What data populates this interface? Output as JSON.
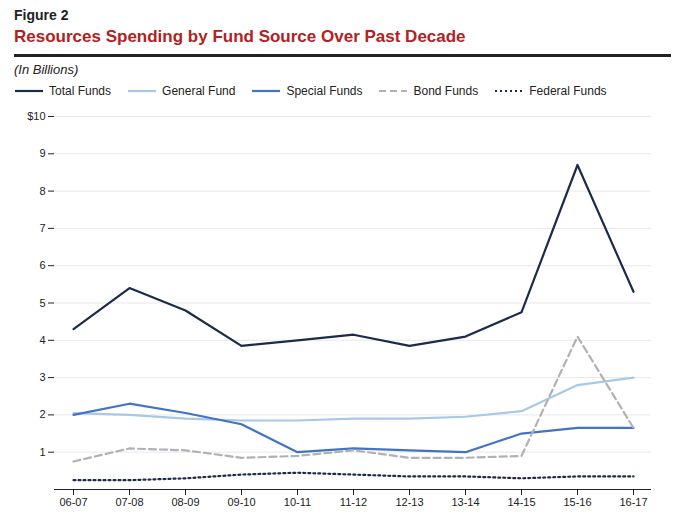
{
  "chart_data": {
    "type": "line",
    "figure_label": "Figure 2",
    "title": "Resources Spending by Fund Source Over Past Decade",
    "subtitle": "(In Billions)",
    "categories": [
      "06-07",
      "07-08",
      "08-09",
      "09-10",
      "10-11",
      "11-12",
      "12-13",
      "13-14",
      "14-15",
      "15-16",
      "16-17"
    ],
    "series": [
      {
        "name": "Total Funds",
        "color": "#1c2b4a",
        "line_style": "solid",
        "values": [
          4.3,
          5.4,
          4.8,
          3.85,
          4.0,
          4.15,
          3.85,
          4.1,
          4.75,
          8.7,
          5.3
        ]
      },
      {
        "name": "General Fund",
        "color": "#a8c8e8",
        "line_style": "solid",
        "values": [
          2.05,
          2.0,
          1.9,
          1.85,
          1.85,
          1.9,
          1.9,
          1.95,
          2.1,
          2.8,
          3.0
        ]
      },
      {
        "name": "Special Funds",
        "color": "#4472c4",
        "line_style": "solid",
        "values": [
          2.0,
          2.3,
          2.05,
          1.75,
          1.0,
          1.1,
          1.05,
          1.0,
          1.5,
          1.65,
          1.65
        ]
      },
      {
        "name": "Bond Funds",
        "color": "#b0b0b8",
        "line_style": "dashed",
        "values": [
          0.75,
          1.1,
          1.05,
          0.85,
          0.9,
          1.05,
          0.85,
          0.85,
          0.9,
          4.1,
          1.65
        ]
      },
      {
        "name": "Federal Funds",
        "color": "#1c2b4a",
        "line_style": "dotted",
        "values": [
          0.25,
          0.25,
          0.3,
          0.4,
          0.45,
          0.4,
          0.35,
          0.35,
          0.3,
          0.35,
          0.35
        ]
      }
    ],
    "ylim": [
      0,
      10
    ],
    "yticks": [
      1,
      2,
      3,
      4,
      5,
      6,
      7,
      8,
      9,
      {
        "value": 10,
        "label": "$10"
      }
    ],
    "grid": true,
    "legend": "upper left"
  }
}
